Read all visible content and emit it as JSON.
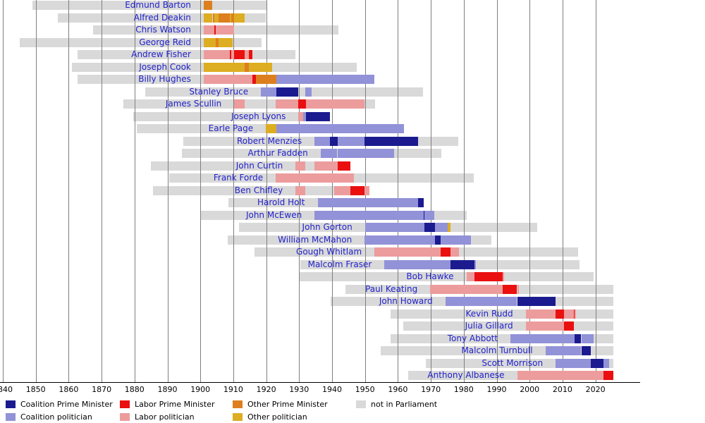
{
  "colors": {
    "coalition_pm": "#1b1b8f",
    "coalition_pol": "#9292d8",
    "labor_pm": "#ea1010",
    "labor_pol": "#ec9c9c",
    "other_pm": "#dd7f1f",
    "other_pol": "#ddad22",
    "none": "#d9d9d9",
    "name_link": "#2222cc"
  },
  "legend": {
    "rows": [
      [
        {
          "key": "coalition_pm",
          "label": "Coalition Prime Minister"
        },
        {
          "key": "labor_pm",
          "label": "Labor Prime Minister"
        },
        {
          "key": "other_pm",
          "label": "Other Prime Minister"
        },
        {
          "key": "none",
          "label": "not in Parliament"
        }
      ],
      [
        {
          "key": "coalition_pol",
          "label": "Coalition politician"
        },
        {
          "key": "labor_pol",
          "label": "Labor politician"
        },
        {
          "key": "other_pol",
          "label": "Other politician"
        }
      ]
    ]
  },
  "chart_data": {
    "type": "timeline",
    "unit": "year",
    "axis": {
      "min": 1840,
      "max": 2026,
      "ticks": [
        1840,
        1850,
        1860,
        1870,
        1880,
        1890,
        1900,
        1910,
        1920,
        1930,
        1940,
        1950,
        1960,
        1970,
        1980,
        1990,
        2000,
        2010,
        2020
      ]
    },
    "rows": [
      {
        "name": "Edmund Barton",
        "start": 1849,
        "end": 1920,
        "segments": [
          {
            "from": 1901.0,
            "to": 1903.7,
            "key": "other_pm"
          }
        ]
      },
      {
        "name": "Alfred Deakin",
        "start": 1856.6,
        "end": 1919.8,
        "segments": [
          {
            "from": 1901.0,
            "to": 1903.7,
            "key": "other_pol"
          },
          {
            "from": 1903.7,
            "to": 1904.3,
            "key": "other_pm"
          },
          {
            "from": 1904.3,
            "to": 1905.5,
            "key": "other_pol"
          },
          {
            "from": 1905.5,
            "to": 1908.9,
            "key": "other_pm"
          },
          {
            "from": 1908.9,
            "to": 1909.4,
            "key": "other_pol"
          },
          {
            "from": 1909.4,
            "to": 1910.3,
            "key": "other_pm"
          },
          {
            "from": 1910.3,
            "to": 1913.4,
            "key": "other_pol"
          }
        ]
      },
      {
        "name": "Chris Watson",
        "start": 1867.3,
        "end": 1941.9,
        "segments": [
          {
            "from": 1901.0,
            "to": 1904.3,
            "key": "labor_pol"
          },
          {
            "from": 1904.3,
            "to": 1904.6,
            "key": "labor_pm"
          },
          {
            "from": 1904.6,
            "to": 1910.3,
            "key": "labor_pol"
          }
        ]
      },
      {
        "name": "George Reid",
        "start": 1845.1,
        "end": 1918.7,
        "segments": [
          {
            "from": 1901.0,
            "to": 1904.6,
            "key": "other_pol"
          },
          {
            "from": 1904.6,
            "to": 1905.5,
            "key": "other_pm"
          },
          {
            "from": 1905.5,
            "to": 1909.9,
            "key": "other_pol"
          }
        ]
      },
      {
        "name": "Andrew Fisher",
        "start": 1862.7,
        "end": 1928.8,
        "segments": [
          {
            "from": 1901.0,
            "to": 1908.9,
            "key": "labor_pol"
          },
          {
            "from": 1908.9,
            "to": 1909.4,
            "key": "labor_pm"
          },
          {
            "from": 1909.4,
            "to": 1910.3,
            "key": "labor_pol"
          },
          {
            "from": 1910.3,
            "to": 1913.5,
            "key": "labor_pm"
          },
          {
            "from": 1913.5,
            "to": 1914.7,
            "key": "labor_pol"
          },
          {
            "from": 1914.7,
            "to": 1915.8,
            "key": "labor_pm"
          }
        ]
      },
      {
        "name": "Joseph Cook",
        "start": 1860.9,
        "end": 1947.6,
        "segments": [
          {
            "from": 1901.0,
            "to": 1913.5,
            "key": "other_pol"
          },
          {
            "from": 1913.5,
            "to": 1914.7,
            "key": "other_pm"
          },
          {
            "from": 1914.7,
            "to": 1921.8,
            "key": "other_pol"
          }
        ]
      },
      {
        "name": "Billy Hughes",
        "start": 1862.7,
        "end": 1952.8,
        "segments": [
          {
            "from": 1901.0,
            "to": 1915.8,
            "key": "labor_pol"
          },
          {
            "from": 1915.8,
            "to": 1916.9,
            "key": "labor_pm"
          },
          {
            "from": 1916.9,
            "to": 1923.1,
            "key": "other_pm"
          },
          {
            "from": 1923.1,
            "to": 1952.8,
            "key": "coalition_pol"
          }
        ]
      },
      {
        "name": "Stanley Bruce",
        "start": 1883.3,
        "end": 1967.7,
        "segments": [
          {
            "from": 1918.4,
            "to": 1923.1,
            "key": "coalition_pol"
          },
          {
            "from": 1923.1,
            "to": 1929.8,
            "key": "coalition_pm"
          },
          {
            "from": 1931.9,
            "to": 1933.7,
            "key": "coalition_pol"
          }
        ]
      },
      {
        "name": "James Scullin",
        "start": 1876.7,
        "end": 1953.1,
        "segments": [
          {
            "from": 1910.3,
            "to": 1913.5,
            "key": "labor_pol"
          },
          {
            "from": 1922.9,
            "to": 1929.8,
            "key": "labor_pol"
          },
          {
            "from": 1929.8,
            "to": 1932.0,
            "key": "labor_pm"
          },
          {
            "from": 1932.0,
            "to": 1949.9,
            "key": "labor_pol"
          }
        ]
      },
      {
        "name": "Joseph Lyons",
        "start": 1879.7,
        "end": 1939.3,
        "segments": [
          {
            "from": 1929.8,
            "to": 1931.2,
            "key": "labor_pol"
          },
          {
            "from": 1931.2,
            "to": 1932.0,
            "key": "coalition_pol"
          },
          {
            "from": 1932.0,
            "to": 1939.3,
            "key": "coalition_pm"
          }
        ]
      },
      {
        "name": "Earle Page",
        "start": 1880.6,
        "end": 1961.9,
        "segments": [
          {
            "from": 1919.9,
            "to": 1923.1,
            "key": "other_pol"
          },
          {
            "from": 1923.1,
            "to": 1939.3,
            "key": "coalition_pol"
          },
          {
            "from": 1939.3,
            "to": 1939.4,
            "key": "coalition_pm"
          },
          {
            "from": 1939.4,
            "to": 1961.8,
            "key": "coalition_pol"
          }
        ]
      },
      {
        "name": "Robert Menzies",
        "start": 1894.9,
        "end": 1978.4,
        "segments": [
          {
            "from": 1934.7,
            "to": 1939.3,
            "key": "coalition_pol"
          },
          {
            "from": 1939.3,
            "to": 1941.7,
            "key": "coalition_pm"
          },
          {
            "from": 1941.7,
            "to": 1949.9,
            "key": "coalition_pol"
          },
          {
            "from": 1949.9,
            "to": 1966.1,
            "key": "coalition_pm"
          }
        ]
      },
      {
        "name": "Arthur Fadden",
        "start": 1894.3,
        "end": 1973.3,
        "segments": [
          {
            "from": 1936.5,
            "to": 1941.6,
            "key": "coalition_pol"
          },
          {
            "from": 1941.6,
            "to": 1941.8,
            "key": "coalition_pm"
          },
          {
            "from": 1941.8,
            "to": 1958.9,
            "key": "coalition_pol"
          }
        ]
      },
      {
        "name": "John Curtin",
        "start": 1885.0,
        "end": 1945.5,
        "segments": [
          {
            "from": 1928.9,
            "to": 1931.9,
            "key": "labor_pol"
          },
          {
            "from": 1934.7,
            "to": 1941.8,
            "key": "labor_pol"
          },
          {
            "from": 1941.8,
            "to": 1945.5,
            "key": "labor_pm"
          }
        ]
      },
      {
        "name": "Frank Forde",
        "start": 1890.5,
        "end": 1983.1,
        "segments": [
          {
            "from": 1922.9,
            "to": 1945.5,
            "key": "labor_pol"
          },
          {
            "from": 1945.5,
            "to": 1945.6,
            "key": "labor_pm"
          },
          {
            "from": 1945.6,
            "to": 1946.7,
            "key": "labor_pol"
          }
        ]
      },
      {
        "name": "Ben Chifley",
        "start": 1885.7,
        "end": 1951.4,
        "segments": [
          {
            "from": 1928.9,
            "to": 1931.9,
            "key": "labor_pol"
          },
          {
            "from": 1940.7,
            "to": 1945.6,
            "key": "labor_pol"
          },
          {
            "from": 1945.6,
            "to": 1949.9,
            "key": "labor_pm"
          },
          {
            "from": 1949.9,
            "to": 1951.4,
            "key": "labor_pol"
          }
        ]
      },
      {
        "name": "Harold Holt",
        "start": 1908.6,
        "end": 1967.9,
        "segments": [
          {
            "from": 1935.6,
            "to": 1966.1,
            "key": "coalition_pol"
          },
          {
            "from": 1966.1,
            "to": 1967.9,
            "key": "coalition_pm"
          }
        ]
      },
      {
        "name": "John McEwen",
        "start": 1900.2,
        "end": 1980.9,
        "segments": [
          {
            "from": 1934.7,
            "to": 1967.9,
            "key": "coalition_pol"
          },
          {
            "from": 1967.9,
            "to": 1968.1,
            "key": "coalition_pm"
          },
          {
            "from": 1968.1,
            "to": 1971.1,
            "key": "coalition_pol"
          }
        ]
      },
      {
        "name": "John Gorton",
        "start": 1911.7,
        "end": 2002.4,
        "segments": [
          {
            "from": 1950.0,
            "to": 1968.1,
            "key": "coalition_pol"
          },
          {
            "from": 1968.1,
            "to": 1971.2,
            "key": "coalition_pm"
          },
          {
            "from": 1971.2,
            "to": 1975.2,
            "key": "coalition_pol"
          },
          {
            "from": 1975.2,
            "to": 1975.9,
            "key": "other_pol"
          }
        ]
      },
      {
        "name": "William McMahon",
        "start": 1908.2,
        "end": 1988.3,
        "segments": [
          {
            "from": 1949.9,
            "to": 1971.2,
            "key": "coalition_pol"
          },
          {
            "from": 1971.2,
            "to": 1972.9,
            "key": "coalition_pm"
          },
          {
            "from": 1972.9,
            "to": 1982.1,
            "key": "coalition_pol"
          }
        ]
      },
      {
        "name": "Gough Whitlam",
        "start": 1916.5,
        "end": 2014.8,
        "segments": [
          {
            "from": 1952.9,
            "to": 1972.9,
            "key": "labor_pol"
          },
          {
            "from": 1972.9,
            "to": 1975.9,
            "key": "labor_pm"
          },
          {
            "from": 1975.9,
            "to": 1978.5,
            "key": "labor_pol"
          }
        ]
      },
      {
        "name": "Malcolm Fraser",
        "start": 1930.4,
        "end": 2015.2,
        "segments": [
          {
            "from": 1955.9,
            "to": 1975.9,
            "key": "coalition_pol"
          },
          {
            "from": 1975.9,
            "to": 1983.2,
            "key": "coalition_pm"
          },
          {
            "from": 1983.2,
            "to": 1983.4,
            "key": "coalition_pol"
          }
        ]
      },
      {
        "name": "Bob Hawke",
        "start": 1929.9,
        "end": 2019.4,
        "segments": [
          {
            "from": 1980.8,
            "to": 1983.2,
            "key": "labor_pol"
          },
          {
            "from": 1983.2,
            "to": 1991.9,
            "key": "labor_pm"
          },
          {
            "from": 1991.9,
            "to": 1992.1,
            "key": "labor_pol"
          }
        ]
      },
      {
        "name": "Paul Keating",
        "start": 1944.1,
        "end": 2025.5,
        "segments": [
          {
            "from": 1969.8,
            "to": 1991.9,
            "key": "labor_pol"
          },
          {
            "from": 1991.9,
            "to": 1996.2,
            "key": "labor_pm"
          },
          {
            "from": 1996.2,
            "to": 1996.3,
            "key": "labor_pol"
          }
        ]
      },
      {
        "name": "John Howard",
        "start": 1939.6,
        "end": 2025.5,
        "segments": [
          {
            "from": 1974.4,
            "to": 1996.2,
            "key": "coalition_pol"
          },
          {
            "from": 1996.2,
            "to": 2007.9,
            "key": "coalition_pm"
          }
        ]
      },
      {
        "name": "Kevin Rudd",
        "start": 1957.7,
        "end": 2025.5,
        "segments": [
          {
            "from": 1998.8,
            "to": 2007.9,
            "key": "labor_pol"
          },
          {
            "from": 2007.9,
            "to": 2010.5,
            "key": "labor_pm"
          },
          {
            "from": 2010.5,
            "to": 2013.5,
            "key": "labor_pol"
          },
          {
            "from": 2013.5,
            "to": 2013.7,
            "key": "labor_pm"
          },
          {
            "from": 2013.7,
            "to": 2013.9,
            "key": "labor_pol"
          }
        ]
      },
      {
        "name": "Julia Gillard",
        "start": 1961.7,
        "end": 2025.5,
        "segments": [
          {
            "from": 1998.8,
            "to": 2010.5,
            "key": "labor_pol"
          },
          {
            "from": 2010.5,
            "to": 2013.5,
            "key": "labor_pm"
          }
        ]
      },
      {
        "name": "Tony Abbott",
        "start": 1957.8,
        "end": 2025.5,
        "segments": [
          {
            "from": 1994.2,
            "to": 2013.7,
            "key": "coalition_pol"
          },
          {
            "from": 2013.7,
            "to": 2015.7,
            "key": "coalition_pm"
          },
          {
            "from": 2015.7,
            "to": 2019.4,
            "key": "coalition_pol"
          }
        ]
      },
      {
        "name": "Malcolm Turnbull",
        "start": 1954.8,
        "end": 2025.5,
        "segments": [
          {
            "from": 2004.8,
            "to": 2015.7,
            "key": "coalition_pol"
          },
          {
            "from": 2015.7,
            "to": 2018.6,
            "key": "coalition_pm"
          }
        ]
      },
      {
        "name": "Scott Morrison",
        "start": 1968.4,
        "end": 2025.5,
        "segments": [
          {
            "from": 2007.9,
            "to": 2018.6,
            "key": "coalition_pol"
          },
          {
            "from": 2018.6,
            "to": 2022.4,
            "key": "coalition_pm"
          },
          {
            "from": 2022.4,
            "to": 2024.2,
            "key": "coalition_pol"
          }
        ]
      },
      {
        "name": "Anthony Albanese",
        "start": 1963.2,
        "end": 2025.5,
        "segments": [
          {
            "from": 1996.2,
            "to": 2022.4,
            "key": "labor_pol"
          },
          {
            "from": 2022.4,
            "to": 2025.5,
            "key": "labor_pm"
          }
        ]
      }
    ]
  }
}
